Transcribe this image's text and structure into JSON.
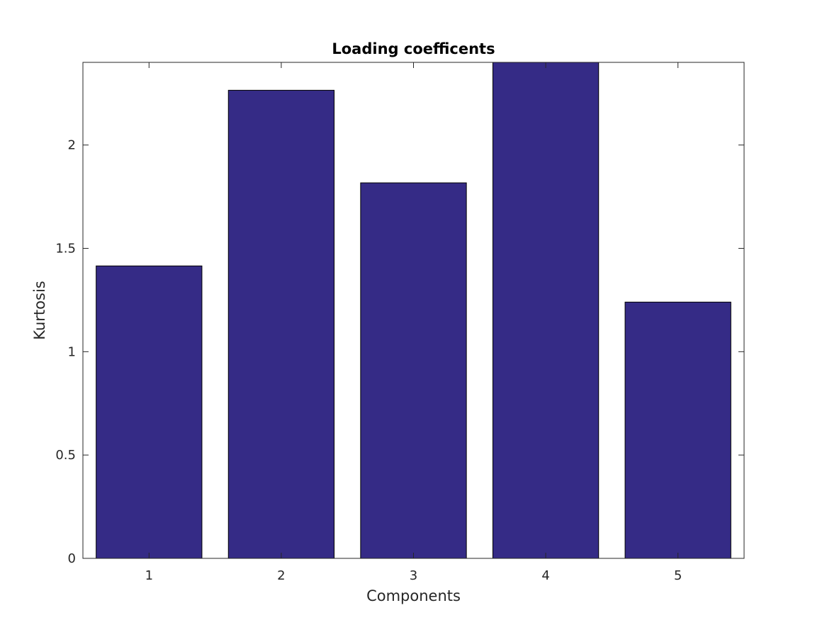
{
  "chart_data": {
    "type": "bar",
    "title": "Loading coefficents",
    "xlabel": "Components",
    "ylabel": "Kurtosis",
    "categories": [
      "1",
      "2",
      "3",
      "4",
      "5"
    ],
    "values": [
      1.415,
      2.265,
      1.817,
      2.4,
      1.24
    ],
    "ylim": [
      0,
      2.4
    ],
    "yticks": [
      0,
      0.5,
      1,
      1.5,
      2
    ],
    "ytick_labels": [
      "0",
      "0.5",
      "1",
      "1.5",
      "2"
    ],
    "bar_color": "#352B86",
    "bar_edge_color": "#000000",
    "grid": false,
    "box": true
  }
}
